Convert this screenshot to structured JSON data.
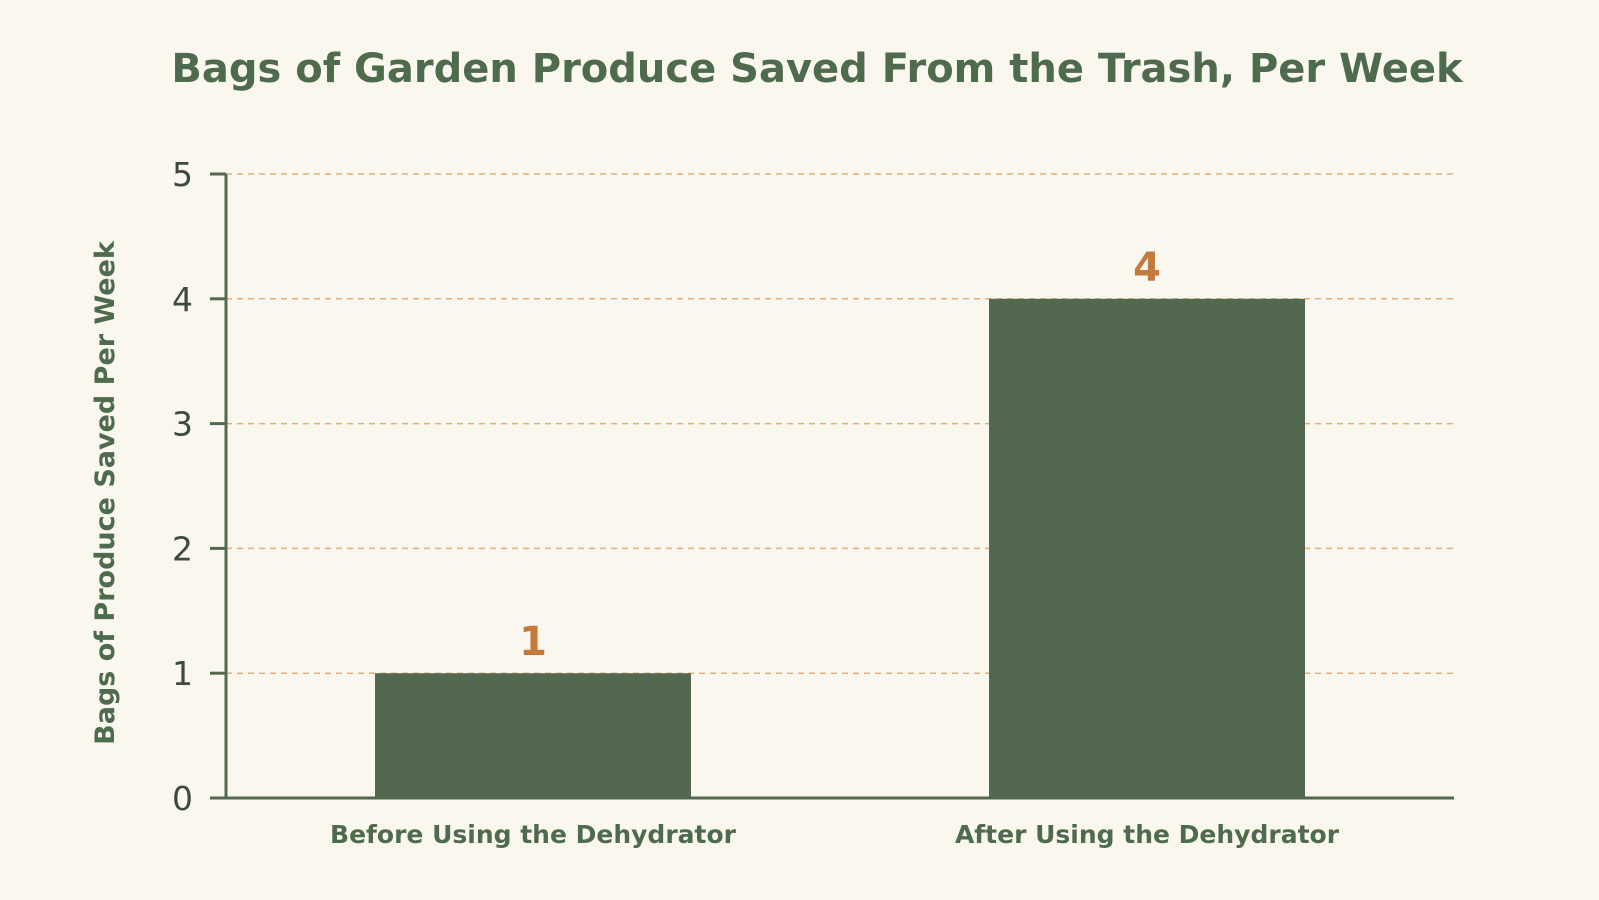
{
  "colors": {
    "background": "#faf7ef",
    "bar": "#52694f",
    "axis": "#52694f",
    "grid": "#e0b07a",
    "value_label": "#c47a3d",
    "text": "#4f6b4e"
  },
  "chart_data": {
    "type": "bar",
    "title": "Bags of Garden Produce Saved From the Trash, Per Week",
    "xlabel": "",
    "ylabel": "Bags of Produce Saved Per Week",
    "categories": [
      "Before Using the Dehydrator",
      "After Using the Dehydrator"
    ],
    "values": [
      1,
      4
    ],
    "value_labels": [
      "1",
      "4"
    ],
    "ylim": [
      0,
      5
    ],
    "yticks": [
      0,
      1,
      2,
      3,
      4,
      5
    ],
    "ytick_labels": [
      "0",
      "1",
      "2",
      "3",
      "4",
      "5"
    ],
    "grid": true,
    "grid_style": "dashed horizontal",
    "legend": "none"
  }
}
